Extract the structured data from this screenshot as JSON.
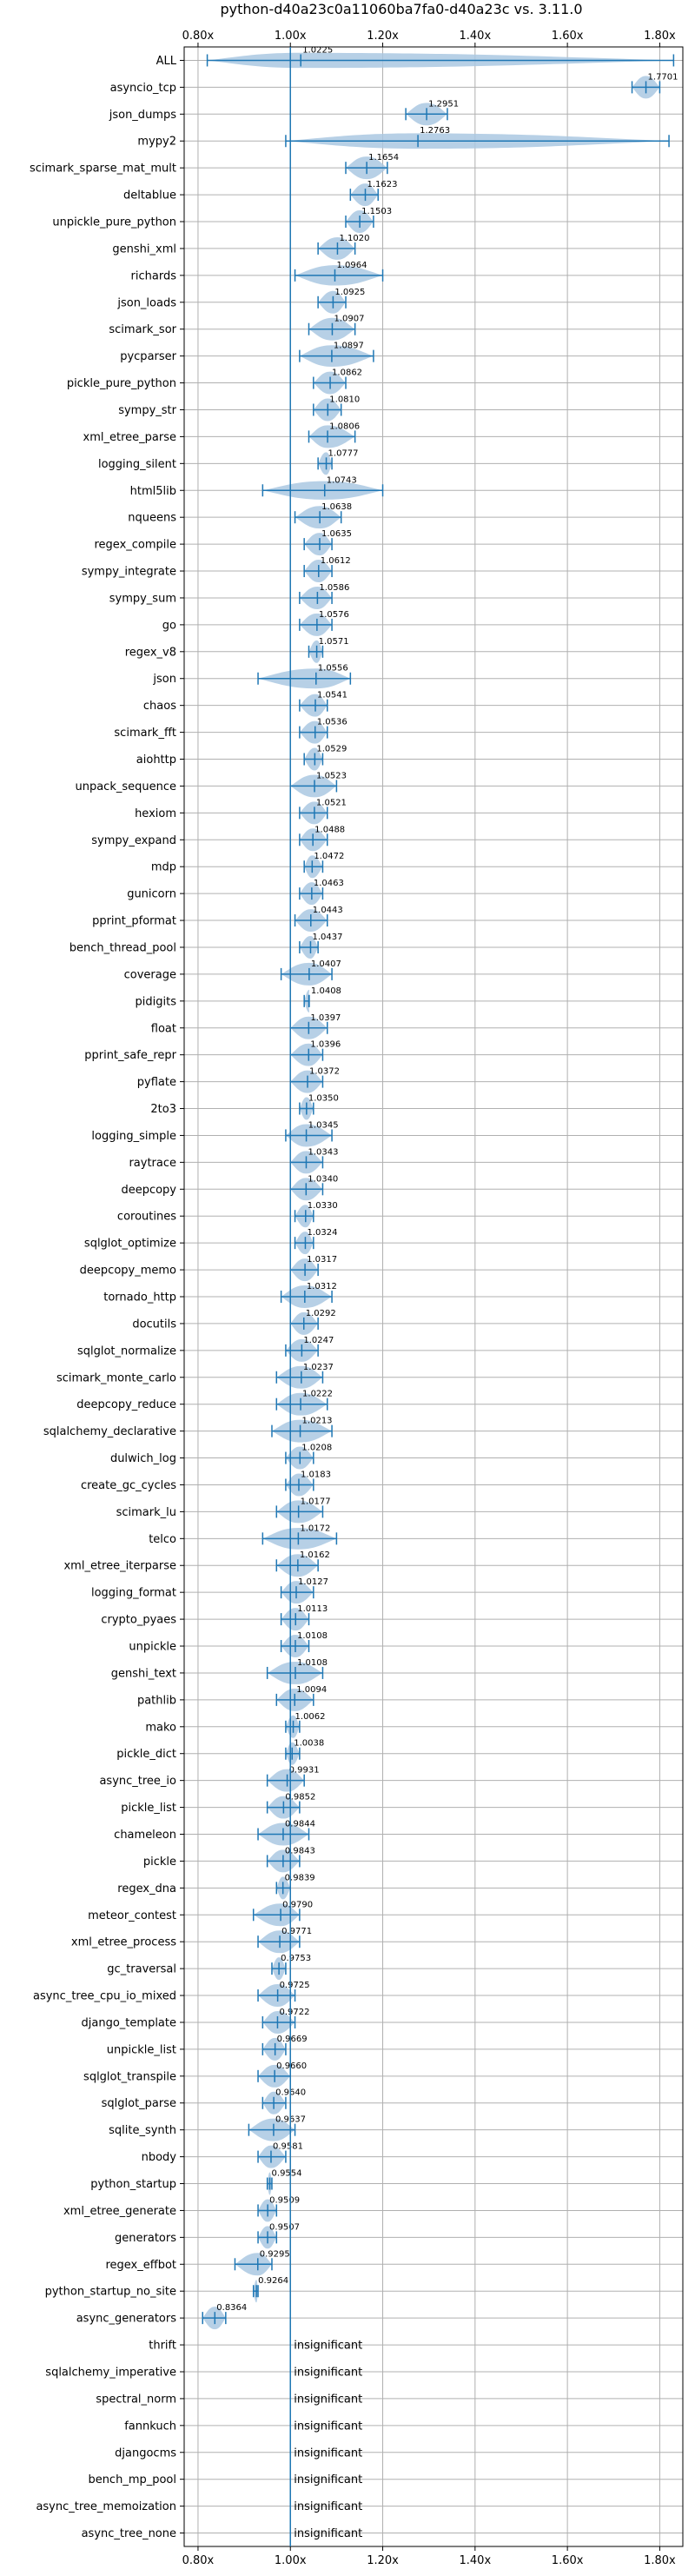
{
  "chart_data": {
    "type": "violin",
    "title": "python-d40a23c0a11060ba7fa0-d40a23c vs. 3.11.0",
    "xlim": [
      0.77,
      1.85
    ],
    "xticks": [
      0.8,
      1.0,
      1.2,
      1.4,
      1.6,
      1.8
    ],
    "xtick_labels": [
      "0.80x",
      "1.00x",
      "1.20x",
      "1.40x",
      "1.60x",
      "1.80x"
    ],
    "reference_line": 1.0,
    "grid": true,
    "colors": {
      "violin": "#aac8e2",
      "median": "#1f77b4",
      "ref_line": "#1f77b4",
      "grid": "#b0b0b0"
    },
    "insignificant_label": "insignificant",
    "benchmarks": [
      {
        "name": "ALL",
        "value": 1.0225,
        "min": 0.82,
        "max": 1.83
      },
      {
        "name": "asyncio_tcp",
        "value": 1.7701,
        "min": 1.74,
        "max": 1.8
      },
      {
        "name": "json_dumps",
        "value": 1.2951,
        "min": 1.25,
        "max": 1.34
      },
      {
        "name": "mypy2",
        "value": 1.2763,
        "min": 0.99,
        "max": 1.82
      },
      {
        "name": "scimark_sparse_mat_mult",
        "value": 1.1654,
        "min": 1.12,
        "max": 1.21
      },
      {
        "name": "deltablue",
        "value": 1.1623,
        "min": 1.13,
        "max": 1.19
      },
      {
        "name": "unpickle_pure_python",
        "value": 1.1503,
        "min": 1.12,
        "max": 1.18
      },
      {
        "name": "genshi_xml",
        "value": 1.102,
        "min": 1.06,
        "max": 1.14
      },
      {
        "name": "richards",
        "value": 1.0964,
        "min": 1.01,
        "max": 1.2
      },
      {
        "name": "json_loads",
        "value": 1.0925,
        "min": 1.06,
        "max": 1.12
      },
      {
        "name": "scimark_sor",
        "value": 1.0907,
        "min": 1.04,
        "max": 1.14
      },
      {
        "name": "pycparser",
        "value": 1.0897,
        "min": 1.02,
        "max": 1.18
      },
      {
        "name": "pickle_pure_python",
        "value": 1.0862,
        "min": 1.05,
        "max": 1.12
      },
      {
        "name": "sympy_str",
        "value": 1.081,
        "min": 1.05,
        "max": 1.11
      },
      {
        "name": "xml_etree_parse",
        "value": 1.0806,
        "min": 1.04,
        "max": 1.14
      },
      {
        "name": "logging_silent",
        "value": 1.0777,
        "min": 1.06,
        "max": 1.09
      },
      {
        "name": "html5lib",
        "value": 1.0743,
        "min": 0.94,
        "max": 1.2
      },
      {
        "name": "nqueens",
        "value": 1.0638,
        "min": 1.01,
        "max": 1.11
      },
      {
        "name": "regex_compile",
        "value": 1.0635,
        "min": 1.03,
        "max": 1.09
      },
      {
        "name": "sympy_integrate",
        "value": 1.0612,
        "min": 1.03,
        "max": 1.09
      },
      {
        "name": "sympy_sum",
        "value": 1.0586,
        "min": 1.02,
        "max": 1.09
      },
      {
        "name": "go",
        "value": 1.0576,
        "min": 1.02,
        "max": 1.09
      },
      {
        "name": "regex_v8",
        "value": 1.0571,
        "min": 1.04,
        "max": 1.07
      },
      {
        "name": "json",
        "value": 1.0556,
        "min": 0.93,
        "max": 1.13
      },
      {
        "name": "chaos",
        "value": 1.0541,
        "min": 1.02,
        "max": 1.08
      },
      {
        "name": "scimark_fft",
        "value": 1.0536,
        "min": 1.02,
        "max": 1.08
      },
      {
        "name": "aiohttp",
        "value": 1.0529,
        "min": 1.03,
        "max": 1.07
      },
      {
        "name": "unpack_sequence",
        "value": 1.0523,
        "min": 1.0,
        "max": 1.1
      },
      {
        "name": "hexiom",
        "value": 1.0521,
        "min": 1.02,
        "max": 1.08
      },
      {
        "name": "sympy_expand",
        "value": 1.0488,
        "min": 1.02,
        "max": 1.08
      },
      {
        "name": "mdp",
        "value": 1.0472,
        "min": 1.03,
        "max": 1.07
      },
      {
        "name": "gunicorn",
        "value": 1.0463,
        "min": 1.02,
        "max": 1.07
      },
      {
        "name": "pprint_pformat",
        "value": 1.0443,
        "min": 1.01,
        "max": 1.08
      },
      {
        "name": "bench_thread_pool",
        "value": 1.0437,
        "min": 1.02,
        "max": 1.06
      },
      {
        "name": "coverage",
        "value": 1.0407,
        "min": 0.98,
        "max": 1.09
      },
      {
        "name": "pidigits",
        "value": 1.0408,
        "min": 1.03,
        "max": 1.04
      },
      {
        "name": "float",
        "value": 1.0397,
        "min": 1.0,
        "max": 1.08
      },
      {
        "name": "pprint_safe_repr",
        "value": 1.0396,
        "min": 1.0,
        "max": 1.07
      },
      {
        "name": "pyflate",
        "value": 1.0372,
        "min": 1.0,
        "max": 1.07
      },
      {
        "name": "2to3",
        "value": 1.035,
        "min": 1.02,
        "max": 1.05
      },
      {
        "name": "logging_simple",
        "value": 1.0345,
        "min": 0.99,
        "max": 1.09
      },
      {
        "name": "raytrace",
        "value": 1.0343,
        "min": 1.0,
        "max": 1.07
      },
      {
        "name": "deepcopy",
        "value": 1.034,
        "min": 1.0,
        "max": 1.07
      },
      {
        "name": "coroutines",
        "value": 1.033,
        "min": 1.01,
        "max": 1.05
      },
      {
        "name": "sqlglot_optimize",
        "value": 1.0324,
        "min": 1.01,
        "max": 1.05
      },
      {
        "name": "deepcopy_memo",
        "value": 1.0317,
        "min": 1.0,
        "max": 1.06
      },
      {
        "name": "tornado_http",
        "value": 1.0312,
        "min": 0.98,
        "max": 1.09
      },
      {
        "name": "docutils",
        "value": 1.0292,
        "min": 1.0,
        "max": 1.06
      },
      {
        "name": "sqlglot_normalize",
        "value": 1.0247,
        "min": 0.99,
        "max": 1.06
      },
      {
        "name": "scimark_monte_carlo",
        "value": 1.0237,
        "min": 0.97,
        "max": 1.07
      },
      {
        "name": "deepcopy_reduce",
        "value": 1.0222,
        "min": 0.97,
        "max": 1.08
      },
      {
        "name": "sqlalchemy_declarative",
        "value": 1.0213,
        "min": 0.96,
        "max": 1.09
      },
      {
        "name": "dulwich_log",
        "value": 1.0208,
        "min": 0.99,
        "max": 1.05
      },
      {
        "name": "create_gc_cycles",
        "value": 1.0183,
        "min": 0.99,
        "max": 1.05
      },
      {
        "name": "scimark_lu",
        "value": 1.0177,
        "min": 0.97,
        "max": 1.07
      },
      {
        "name": "telco",
        "value": 1.0172,
        "min": 0.94,
        "max": 1.1
      },
      {
        "name": "xml_etree_iterparse",
        "value": 1.0162,
        "min": 0.97,
        "max": 1.06
      },
      {
        "name": "logging_format",
        "value": 1.0127,
        "min": 0.98,
        "max": 1.05
      },
      {
        "name": "crypto_pyaes",
        "value": 1.0113,
        "min": 0.98,
        "max": 1.04
      },
      {
        "name": "unpickle",
        "value": 1.0108,
        "min": 0.98,
        "max": 1.04
      },
      {
        "name": "genshi_text",
        "value": 1.0108,
        "min": 0.95,
        "max": 1.07
      },
      {
        "name": "pathlib",
        "value": 1.0094,
        "min": 0.97,
        "max": 1.05
      },
      {
        "name": "mako",
        "value": 1.0062,
        "min": 0.99,
        "max": 1.02
      },
      {
        "name": "pickle_dict",
        "value": 1.0038,
        "min": 0.99,
        "max": 1.02
      },
      {
        "name": "async_tree_io",
        "value": 0.9931,
        "min": 0.95,
        "max": 1.03
      },
      {
        "name": "pickle_list",
        "value": 0.9852,
        "min": 0.95,
        "max": 1.02
      },
      {
        "name": "chameleon",
        "value": 0.9844,
        "min": 0.93,
        "max": 1.04
      },
      {
        "name": "pickle",
        "value": 0.9843,
        "min": 0.95,
        "max": 1.02
      },
      {
        "name": "regex_dna",
        "value": 0.9839,
        "min": 0.97,
        "max": 1.0
      },
      {
        "name": "meteor_contest",
        "value": 0.979,
        "min": 0.92,
        "max": 1.02
      },
      {
        "name": "xml_etree_process",
        "value": 0.9771,
        "min": 0.93,
        "max": 1.02
      },
      {
        "name": "gc_traversal",
        "value": 0.9753,
        "min": 0.96,
        "max": 0.99
      },
      {
        "name": "async_tree_cpu_io_mixed",
        "value": 0.9725,
        "min": 0.93,
        "max": 1.01
      },
      {
        "name": "django_template",
        "value": 0.9722,
        "min": 0.94,
        "max": 1.01
      },
      {
        "name": "unpickle_list",
        "value": 0.9669,
        "min": 0.94,
        "max": 0.99
      },
      {
        "name": "sqlglot_transpile",
        "value": 0.966,
        "min": 0.93,
        "max": 1.0
      },
      {
        "name": "sqlglot_parse",
        "value": 0.964,
        "min": 0.94,
        "max": 0.99
      },
      {
        "name": "sqlite_synth",
        "value": 0.9637,
        "min": 0.91,
        "max": 1.01
      },
      {
        "name": "nbody",
        "value": 0.9581,
        "min": 0.93,
        "max": 0.99
      },
      {
        "name": "python_startup",
        "value": 0.9554,
        "min": 0.95,
        "max": 0.96
      },
      {
        "name": "xml_etree_generate",
        "value": 0.9509,
        "min": 0.93,
        "max": 0.97
      },
      {
        "name": "generators",
        "value": 0.9507,
        "min": 0.93,
        "max": 0.97
      },
      {
        "name": "regex_effbot",
        "value": 0.9295,
        "min": 0.88,
        "max": 0.96
      },
      {
        "name": "python_startup_no_site",
        "value": 0.9264,
        "min": 0.92,
        "max": 0.93
      },
      {
        "name": "async_generators",
        "value": 0.8364,
        "min": 0.81,
        "max": 0.86
      },
      {
        "name": "thrift",
        "insignificant": true
      },
      {
        "name": "sqlalchemy_imperative",
        "insignificant": true
      },
      {
        "name": "spectral_norm",
        "insignificant": true
      },
      {
        "name": "fannkuch",
        "insignificant": true
      },
      {
        "name": "djangocms",
        "insignificant": true
      },
      {
        "name": "bench_mp_pool",
        "insignificant": true
      },
      {
        "name": "async_tree_memoization",
        "insignificant": true
      },
      {
        "name": "async_tree_none",
        "insignificant": true
      }
    ]
  }
}
